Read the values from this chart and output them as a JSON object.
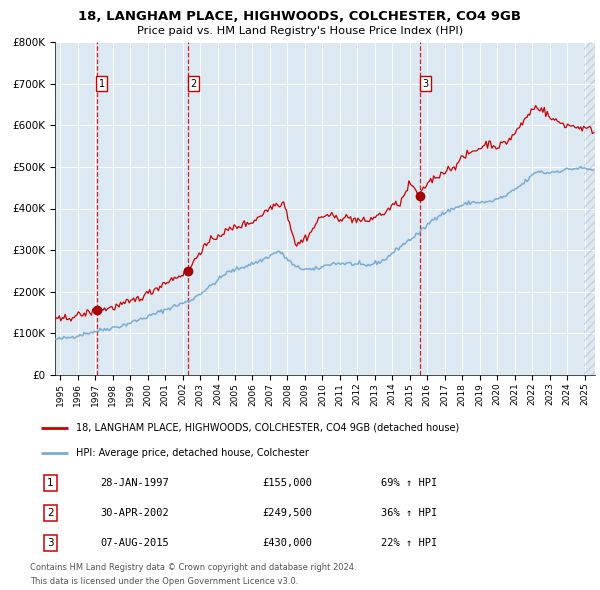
{
  "title1": "18, LANGHAM PLACE, HIGHWOODS, COLCHESTER, CO4 9GB",
  "title2": "Price paid vs. HM Land Registry's House Price Index (HPI)",
  "sale_prices": [
    155000,
    249500,
    430000
  ],
  "sale_labels": [
    "1",
    "2",
    "3"
  ],
  "sale_hpi_pct": [
    "69% ↑ HPI",
    "36% ↑ HPI",
    "22% ↑ HPI"
  ],
  "sale_dates_str": [
    "28-JAN-1997",
    "30-APR-2002",
    "07-AUG-2015"
  ],
  "sale_prices_str": [
    "£155,000",
    "£249,500",
    "£430,000"
  ],
  "sale_years": [
    1997.077,
    2002.329,
    2015.601
  ],
  "x_start": 1994.7,
  "x_end": 2025.6,
  "y_min": 0,
  "y_max": 800000,
  "y_ticks": [
    0,
    100000,
    200000,
    300000,
    400000,
    500000,
    600000,
    700000,
    800000
  ],
  "y_tick_labels": [
    "£0",
    "£100K",
    "£200K",
    "£300K",
    "£400K",
    "£500K",
    "£600K",
    "£700K",
    "£800K"
  ],
  "hpi_line_color": "#7aadd4",
  "price_line_color": "#cc0000",
  "sale_dot_color": "#aa0000",
  "vline_color": "#cc0000",
  "plot_bg_color": "#dce8f2",
  "grid_color": "#ffffff",
  "legend_line1": "18, LANGHAM PLACE, HIGHWOODS, COLCHESTER, CO4 9GB (detached house)",
  "legend_line2": "HPI: Average price, detached house, Colchester",
  "footer1": "Contains HM Land Registry data © Crown copyright and database right 2024.",
  "footer2": "This data is licensed under the Open Government Licence v3.0.",
  "x_tick_years": [
    1995,
    1996,
    1997,
    1998,
    1999,
    2000,
    2001,
    2002,
    2003,
    2004,
    2005,
    2006,
    2007,
    2008,
    2009,
    2010,
    2011,
    2012,
    2013,
    2014,
    2015,
    2016,
    2017,
    2018,
    2019,
    2020,
    2021,
    2022,
    2023,
    2024,
    2025
  ]
}
